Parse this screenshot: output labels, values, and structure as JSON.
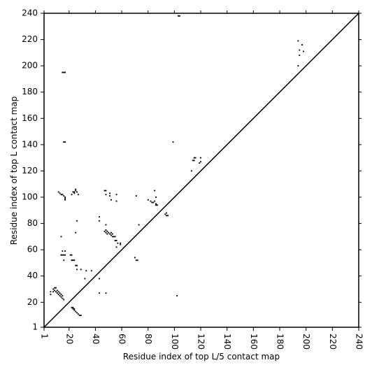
{
  "chart_data": {
    "type": "scatter",
    "x_label": "Residue index of top L/5 contact map",
    "y_label": "Residue index of top L contact map",
    "xlim": [
      1,
      240
    ],
    "ylim": [
      1,
      240
    ],
    "xticks": [
      1,
      20,
      40,
      60,
      80,
      100,
      120,
      140,
      160,
      180,
      200,
      220,
      240
    ],
    "yticks": [
      1,
      20,
      40,
      60,
      80,
      100,
      120,
      140,
      160,
      180,
      200,
      220,
      240
    ],
    "color": "#000000",
    "diagonal": true,
    "x": [
      15,
      16,
      17,
      16,
      17,
      12,
      13,
      14,
      15,
      16,
      17,
      17,
      17,
      22,
      23,
      24,
      25,
      26,
      27,
      25,
      24,
      26,
      14,
      15,
      17,
      14,
      15,
      16,
      17,
      16,
      21,
      22,
      22,
      23,
      24,
      25,
      26,
      26,
      29,
      25,
      32,
      37,
      33,
      8,
      9,
      10,
      11,
      12,
      13,
      14,
      15,
      16,
      9,
      10,
      8,
      11,
      12,
      13,
      14,
      15,
      6,
      6,
      22,
      23,
      24,
      25,
      26,
      27,
      28,
      29,
      23,
      24,
      43,
      43,
      48,
      43,
      43,
      47,
      48,
      48,
      51,
      51,
      52,
      56,
      56,
      47,
      48,
      49,
      50,
      51,
      52,
      53,
      54,
      55,
      55,
      56,
      57,
      59,
      59,
      56,
      48,
      49,
      52,
      53,
      48,
      70,
      71,
      72,
      71,
      73,
      80,
      82,
      83,
      84,
      85,
      86,
      86,
      87,
      85,
      86,
      93,
      94,
      95,
      94,
      99,
      103,
      104,
      102,
      113,
      114,
      115,
      116,
      115,
      119,
      120,
      120,
      194,
      195,
      195,
      194,
      197,
      198
    ],
    "values": [
      195,
      195,
      195,
      142,
      142,
      104,
      103,
      102,
      102,
      101,
      100,
      99,
      98,
      102,
      104,
      103,
      105,
      104,
      102,
      106,
      104,
      82,
      70,
      59,
      59,
      56,
      56,
      56,
      56,
      52,
      56,
      56,
      52,
      52,
      52,
      48,
      48,
      45,
      45,
      73,
      38,
      44,
      44,
      30,
      29,
      28,
      27,
      26,
      25,
      24,
      23,
      22,
      31,
      31,
      28,
      29,
      28,
      27,
      26,
      25,
      28,
      26,
      16,
      15,
      14,
      13,
      12,
      11,
      10,
      10,
      16,
      15,
      38,
      27,
      27,
      85,
      82,
      105,
      105,
      102,
      103,
      101,
      98,
      102,
      97,
      74,
      75,
      74,
      73,
      72,
      71,
      70,
      70,
      70,
      67,
      67,
      65,
      65,
      64,
      62,
      73,
      72,
      73,
      72,
      79,
      54,
      52,
      52,
      101,
      79,
      98,
      97,
      96,
      96,
      97,
      95,
      94,
      94,
      105,
      100,
      87,
      86,
      86,
      88,
      142,
      238,
      238,
      25,
      120,
      128,
      128,
      130,
      130,
      126,
      127,
      130,
      219,
      212,
      208,
      200,
      216,
      211
    ]
  }
}
